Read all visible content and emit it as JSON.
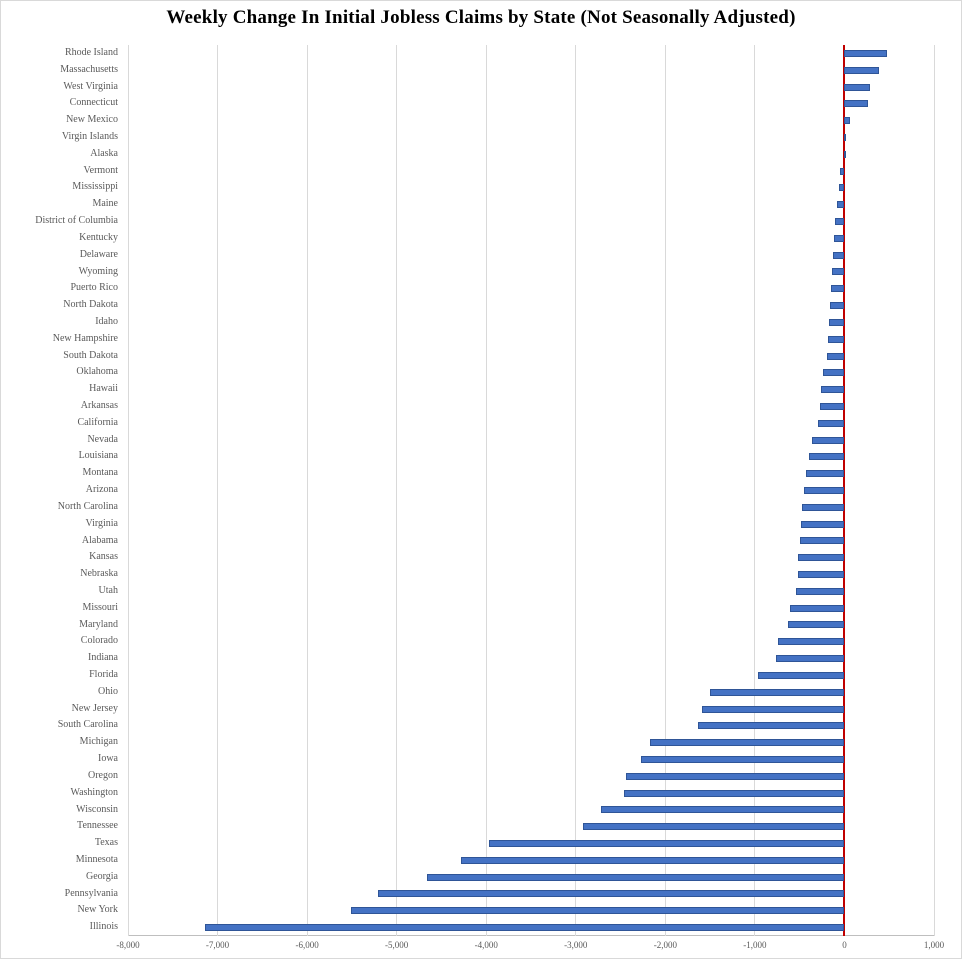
{
  "chart": {
    "title": "Weekly Change In Initial Jobless Claims by State (Not Seasonally Adjusted)"
  },
  "chart_data": {
    "type": "bar",
    "orientation": "horizontal",
    "title": "Weekly Change In Initial Jobless Claims by State (Not Seasonally Adjusted)",
    "categories": [
      "Rhode Island",
      "Massachusetts",
      "West Virginia",
      "Connecticut",
      "New Mexico",
      "Virgin Islands",
      "Alaska",
      "Vermont",
      "Mississippi",
      "Maine",
      "District of Columbia",
      "Kentucky",
      "Delaware",
      "Wyoming",
      "Puerto Rico",
      "North Dakota",
      "Idaho",
      "New Hampshire",
      "South Dakota",
      "Oklahoma",
      "Hawaii",
      "Arkansas",
      "California",
      "Nevada",
      "Louisiana",
      "Montana",
      "Arizona",
      "North Carolina",
      "Virginia",
      "Alabama",
      "Kansas",
      "Nebraska",
      "Utah",
      "Missouri",
      "Maryland",
      "Colorado",
      "Indiana",
      "Florida",
      "Ohio",
      "New Jersey",
      "South Carolina",
      "Michigan",
      "Iowa",
      "Oregon",
      "Washington",
      "Wisconsin",
      "Tennessee",
      "Texas",
      "Minnesota",
      "Georgia",
      "Pennsylvania",
      "New York",
      "Illinois"
    ],
    "values": [
      475,
      385,
      285,
      265,
      60,
      5,
      -10,
      -55,
      -60,
      -80,
      -110,
      -120,
      -125,
      -140,
      -155,
      -160,
      -175,
      -180,
      -195,
      -245,
      -260,
      -270,
      -295,
      -365,
      -395,
      -425,
      -455,
      -475,
      -490,
      -500,
      -515,
      -520,
      -545,
      -605,
      -630,
      -740,
      -760,
      -965,
      -1500,
      -1590,
      -1640,
      -2170,
      -2270,
      -2440,
      -2465,
      -2720,
      -2920,
      -3970,
      -4285,
      -4660,
      -5210,
      -5510,
      -7145
    ],
    "x_ticks": [
      "-8,000",
      "-7,000",
      "-6,000",
      "-5,000",
      "-4,000",
      "-3,000",
      "-2,000",
      "-1,000",
      "0",
      "1,000"
    ],
    "x_tick_values": [
      -8000,
      -7000,
      -6000,
      -5000,
      -4000,
      -3000,
      -2000,
      -1000,
      0,
      1000
    ],
    "xlim": [
      -8000,
      1000
    ],
    "xlabel": "",
    "ylabel": "",
    "legend": "none",
    "grid": "vertical",
    "colors": {
      "bar_fill": "#4472C4",
      "bar_border": "#2F5597",
      "zero_axis": "#C00000",
      "gridline": "#D9D9D9",
      "axis_text": "#595959",
      "y_label_text": "#5A5A5A",
      "title_text": "#000000"
    }
  }
}
